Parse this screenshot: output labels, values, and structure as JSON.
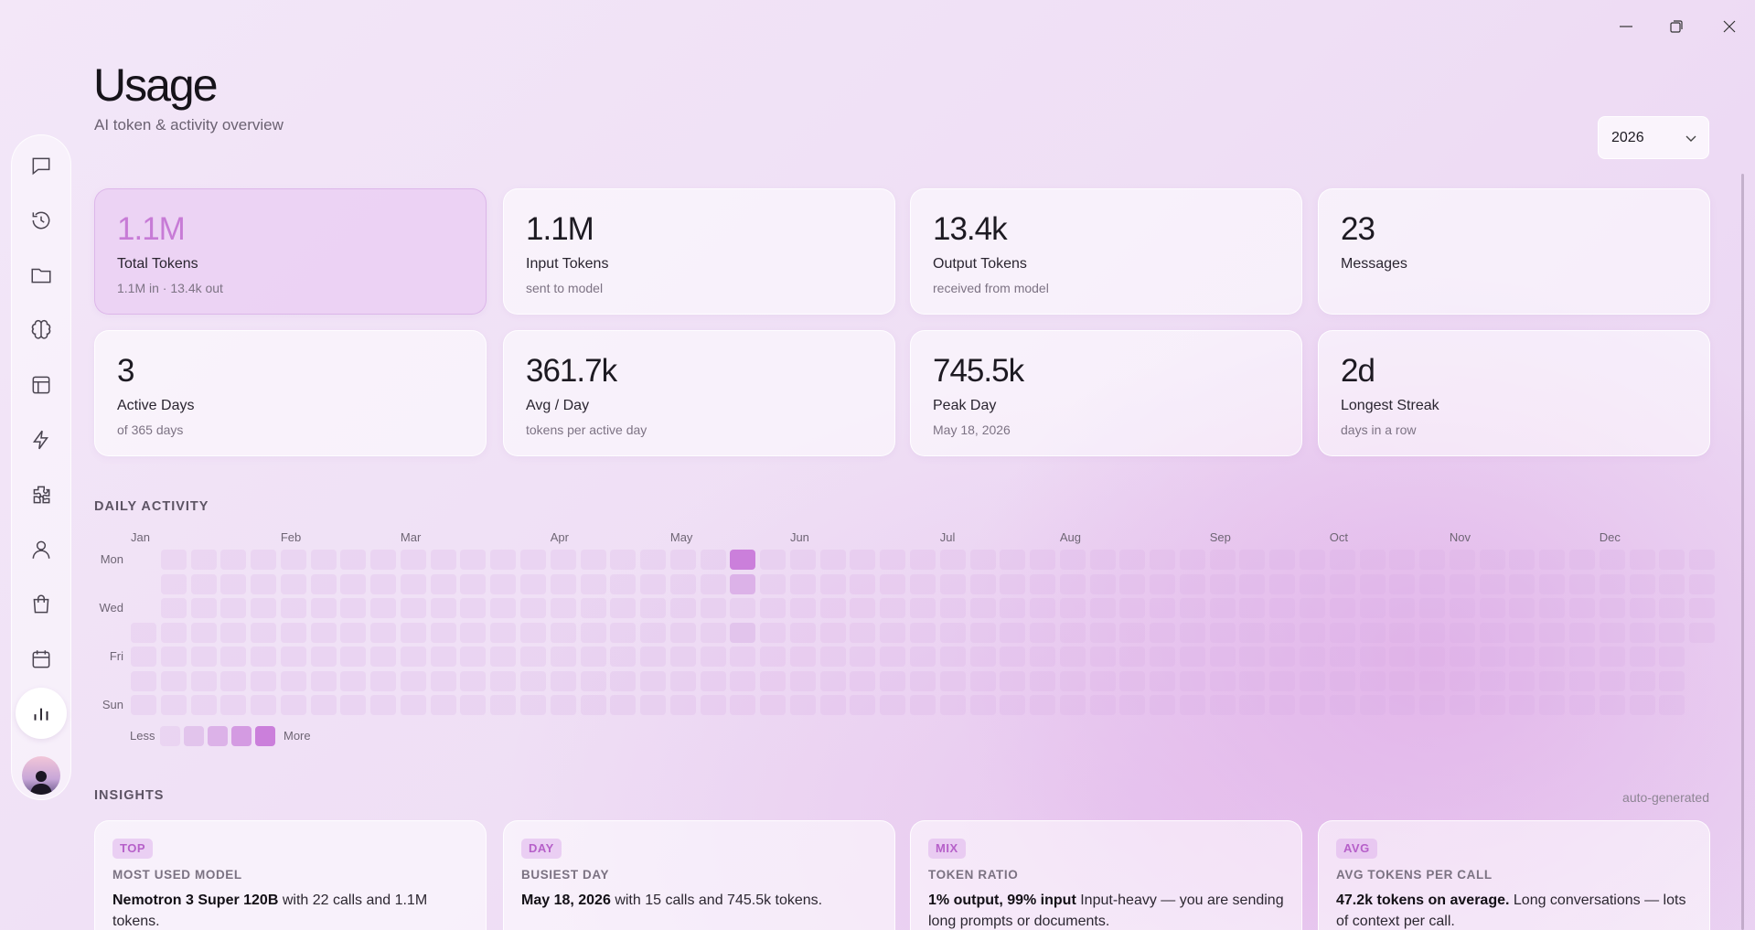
{
  "header": {
    "title": "Usage",
    "subtitle": "AI token & activity overview"
  },
  "year_select": {
    "value": "2026"
  },
  "stats": [
    {
      "value": "1.1M",
      "label": "Total Tokens",
      "sub": "1.1M in · 13.4k out"
    },
    {
      "value": "1.1M",
      "label": "Input Tokens",
      "sub": "sent to model"
    },
    {
      "value": "13.4k",
      "label": "Output Tokens",
      "sub": "received from model"
    },
    {
      "value": "23",
      "label": "Messages"
    },
    {
      "value": "3",
      "label": "Active Days",
      "sub": "of 365 days"
    },
    {
      "value": "361.7k",
      "label": "Avg / Day",
      "sub": "tokens per active day"
    },
    {
      "value": "745.5k",
      "label": "Peak Day",
      "sub": "May 18, 2026"
    },
    {
      "value": "2d",
      "label": "Longest Streak",
      "sub": "days in a row"
    }
  ],
  "daily_activity": {
    "title": "DAILY ACTIVITY",
    "months": [
      "Jan",
      "Feb",
      "Mar",
      "Apr",
      "May",
      "Jun",
      "Jul",
      "Aug",
      "Sep",
      "Oct",
      "Nov",
      "Dec"
    ],
    "day_labels": [
      "Mon",
      null,
      "Wed",
      null,
      "Fri",
      null,
      "Sun"
    ],
    "level_colors": [
      "rgba(214,170,226,0.22)",
      "#e2c4ec",
      "#dcb2e8",
      "#d49be2",
      "#cb7fdb"
    ],
    "legend": {
      "less": "Less",
      "more": "More"
    },
    "weeks": [
      [
        null,
        null,
        null,
        0,
        0,
        0,
        0
      ],
      [
        0,
        0,
        0,
        0,
        0,
        0,
        0
      ],
      [
        0,
        0,
        0,
        0,
        0,
        0,
        0
      ],
      [
        0,
        0,
        0,
        0,
        0,
        0,
        0
      ],
      [
        0,
        0,
        0,
        0,
        0,
        0,
        0
      ],
      [
        0,
        0,
        0,
        0,
        0,
        0,
        0
      ],
      [
        0,
        0,
        0,
        0,
        0,
        0,
        0
      ],
      [
        0,
        0,
        0,
        0,
        0,
        0,
        0
      ],
      [
        0,
        0,
        0,
        0,
        0,
        0,
        0
      ],
      [
        0,
        0,
        0,
        0,
        0,
        0,
        0
      ],
      [
        0,
        0,
        0,
        0,
        0,
        0,
        0
      ],
      [
        0,
        0,
        0,
        0,
        0,
        0,
        0
      ],
      [
        0,
        0,
        0,
        0,
        0,
        0,
        0
      ],
      [
        0,
        0,
        0,
        0,
        0,
        0,
        0
      ],
      [
        0,
        0,
        0,
        0,
        0,
        0,
        0
      ],
      [
        0,
        0,
        0,
        0,
        0,
        0,
        0
      ],
      [
        0,
        0,
        0,
        0,
        0,
        0,
        0
      ],
      [
        0,
        0,
        0,
        0,
        0,
        0,
        0
      ],
      [
        0,
        0,
        0,
        0,
        0,
        0,
        0
      ],
      [
        0,
        0,
        0,
        0,
        0,
        0,
        0
      ],
      [
        4,
        2,
        0,
        1,
        0,
        0,
        0
      ],
      [
        0,
        0,
        0,
        0,
        0,
        0,
        0
      ],
      [
        0,
        0,
        0,
        0,
        0,
        0,
        0
      ],
      [
        0,
        0,
        0,
        0,
        0,
        0,
        0
      ],
      [
        0,
        0,
        0,
        0,
        0,
        0,
        0
      ],
      [
        0,
        0,
        0,
        0,
        0,
        0,
        0
      ],
      [
        0,
        0,
        0,
        0,
        0,
        0,
        0
      ],
      [
        0,
        0,
        0,
        0,
        0,
        0,
        0
      ],
      [
        0,
        0,
        0,
        0,
        0,
        0,
        0
      ],
      [
        0,
        0,
        0,
        0,
        0,
        0,
        0
      ],
      [
        0,
        0,
        0,
        0,
        0,
        0,
        0
      ],
      [
        0,
        0,
        0,
        0,
        0,
        0,
        0
      ],
      [
        0,
        0,
        0,
        0,
        0,
        0,
        0
      ],
      [
        0,
        0,
        0,
        0,
        0,
        0,
        0
      ],
      [
        0,
        0,
        0,
        0,
        0,
        0,
        0
      ],
      [
        0,
        0,
        0,
        0,
        0,
        0,
        0
      ],
      [
        0,
        0,
        0,
        0,
        0,
        0,
        0
      ],
      [
        0,
        0,
        0,
        0,
        0,
        0,
        0
      ],
      [
        0,
        0,
        0,
        0,
        0,
        0,
        0
      ],
      [
        0,
        0,
        0,
        0,
        0,
        0,
        0
      ],
      [
        0,
        0,
        0,
        0,
        0,
        0,
        0
      ],
      [
        0,
        0,
        0,
        0,
        0,
        0,
        0
      ],
      [
        0,
        0,
        0,
        0,
        0,
        0,
        0
      ],
      [
        0,
        0,
        0,
        0,
        0,
        0,
        0
      ],
      [
        0,
        0,
        0,
        0,
        0,
        0,
        0
      ],
      [
        0,
        0,
        0,
        0,
        0,
        0,
        0
      ],
      [
        0,
        0,
        0,
        0,
        0,
        0,
        0
      ],
      [
        0,
        0,
        0,
        0,
        0,
        0,
        0
      ],
      [
        0,
        0,
        0,
        0,
        0,
        0,
        0
      ],
      [
        0,
        0,
        0,
        0,
        0,
        0,
        0
      ],
      [
        0,
        0,
        0,
        0,
        0,
        0,
        0
      ],
      [
        0,
        0,
        0,
        0,
        0,
        0,
        0
      ],
      [
        0,
        0,
        0,
        0,
        null,
        null,
        null
      ]
    ]
  },
  "insights": {
    "title": "INSIGHTS",
    "note": "auto-generated",
    "cards": [
      {
        "badge": "TOP",
        "heading": "MOST USED MODEL",
        "highlight": "Nemotron 3 Super 120B",
        "text": "with 22 calls and 1.1M tokens."
      },
      {
        "badge": "DAY",
        "heading": "BUSIEST DAY",
        "highlight": "May 18, 2026",
        "text": "with 15 calls and 745.5k tokens."
      },
      {
        "badge": "MIX",
        "heading": "TOKEN RATIO",
        "highlight": "1% output, 99% input",
        "text": "Input-heavy — you are sending long prompts or documents."
      },
      {
        "badge": "AVG",
        "heading": "AVG TOKENS PER CALL",
        "highlight": "47.2k tokens on average.",
        "text": "Long conversations — lots of context per call."
      }
    ]
  }
}
